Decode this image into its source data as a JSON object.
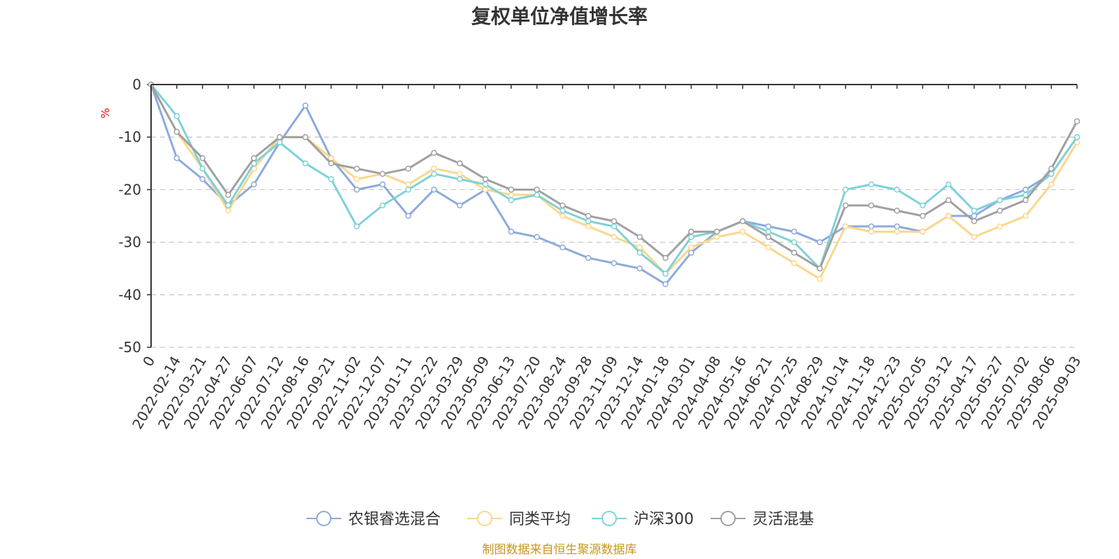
{
  "colors": {
    "background": "#ffffff",
    "text": "#333333",
    "grid": "#c8c8c8",
    "unit": "#e01010",
    "source": "#c8961e"
  },
  "chart_data": {
    "type": "line",
    "title": "复权单位净值增长率",
    "ylabel": "%",
    "ylim": [
      -50,
      0
    ],
    "y_ticks": [
      0,
      -10,
      -20,
      -30,
      -40,
      -50
    ],
    "grid": "horizontal dashed",
    "legend_position": "bottom-center",
    "x": [
      "0",
      "2022-02-14",
      "2022-03-21",
      "2022-04-27",
      "2022-06-07",
      "2022-07-12",
      "2022-08-16",
      "2022-09-21",
      "2022-11-02",
      "2022-12-07",
      "2023-01-11",
      "2023-02-22",
      "2023-03-29",
      "2023-05-09",
      "2023-06-13",
      "2023-07-20",
      "2023-08-24",
      "2023-09-28",
      "2023-11-09",
      "2023-12-14",
      "2024-01-18",
      "2024-03-01",
      "2024-04-08",
      "2024-05-16",
      "2024-06-21",
      "2024-07-25",
      "2024-08-29",
      "2024-10-14",
      "2024-11-18",
      "2024-12-23",
      "2025-02-05",
      "2025-03-12",
      "2025-04-17",
      "2025-05-27",
      "2025-07-02",
      "2025-08-06",
      "2025-09-03"
    ],
    "series": [
      {
        "name": "农银睿选混合",
        "color": "#8caadc",
        "values": [
          0,
          -14,
          -18,
          -23,
          -19,
          -11,
          -4,
          -14,
          -20,
          -19,
          -25,
          -20,
          -23,
          -20,
          -28,
          -29,
          -31,
          -33,
          -34,
          -35,
          -38,
          -32,
          -28,
          -26,
          -27,
          -28,
          -30,
          -27,
          -27,
          -27,
          -28,
          -25,
          -25,
          -22,
          -20,
          -17,
          -10
        ]
      },
      {
        "name": "同类平均",
        "color": "#fcd68c",
        "values": [
          0,
          -9,
          -16,
          -24,
          -16,
          -10,
          -10,
          -14,
          -18,
          -17,
          -19,
          -16,
          -17,
          -20,
          -21,
          -21,
          -25,
          -27,
          -29,
          -31,
          -36,
          -31,
          -29,
          -28,
          -31,
          -34,
          -37,
          -27,
          -28,
          -28,
          -28,
          -25,
          -29,
          -27,
          -25,
          -19,
          -11
        ]
      },
      {
        "name": "沪深300",
        "color": "#7ed2d8",
        "values": [
          0,
          -6,
          -16,
          -23,
          -15,
          -11,
          -15,
          -18,
          -27,
          -23,
          -20,
          -17,
          -18,
          -19,
          -22,
          -21,
          -24,
          -26,
          -27,
          -32,
          -36,
          -29,
          -28,
          -26,
          -28,
          -30,
          -35,
          -20,
          -19,
          -20,
          -23,
          -19,
          -24,
          -22,
          -21,
          -17,
          -10
        ]
      },
      {
        "name": "灵活混基",
        "color": "#a0a0a0",
        "values": [
          0,
          -9,
          -14,
          -21,
          -14,
          -10,
          -10,
          -15,
          -16,
          -17,
          -16,
          -13,
          -15,
          -18,
          -20,
          -20,
          -23,
          -25,
          -26,
          -29,
          -33,
          -28,
          -28,
          -26,
          -29,
          -32,
          -35,
          -23,
          -23,
          -24,
          -25,
          -22,
          -26,
          -24,
          -22,
          -16,
          -7
        ]
      }
    ]
  },
  "source_text": "制图数据来自恒生聚源数据库"
}
